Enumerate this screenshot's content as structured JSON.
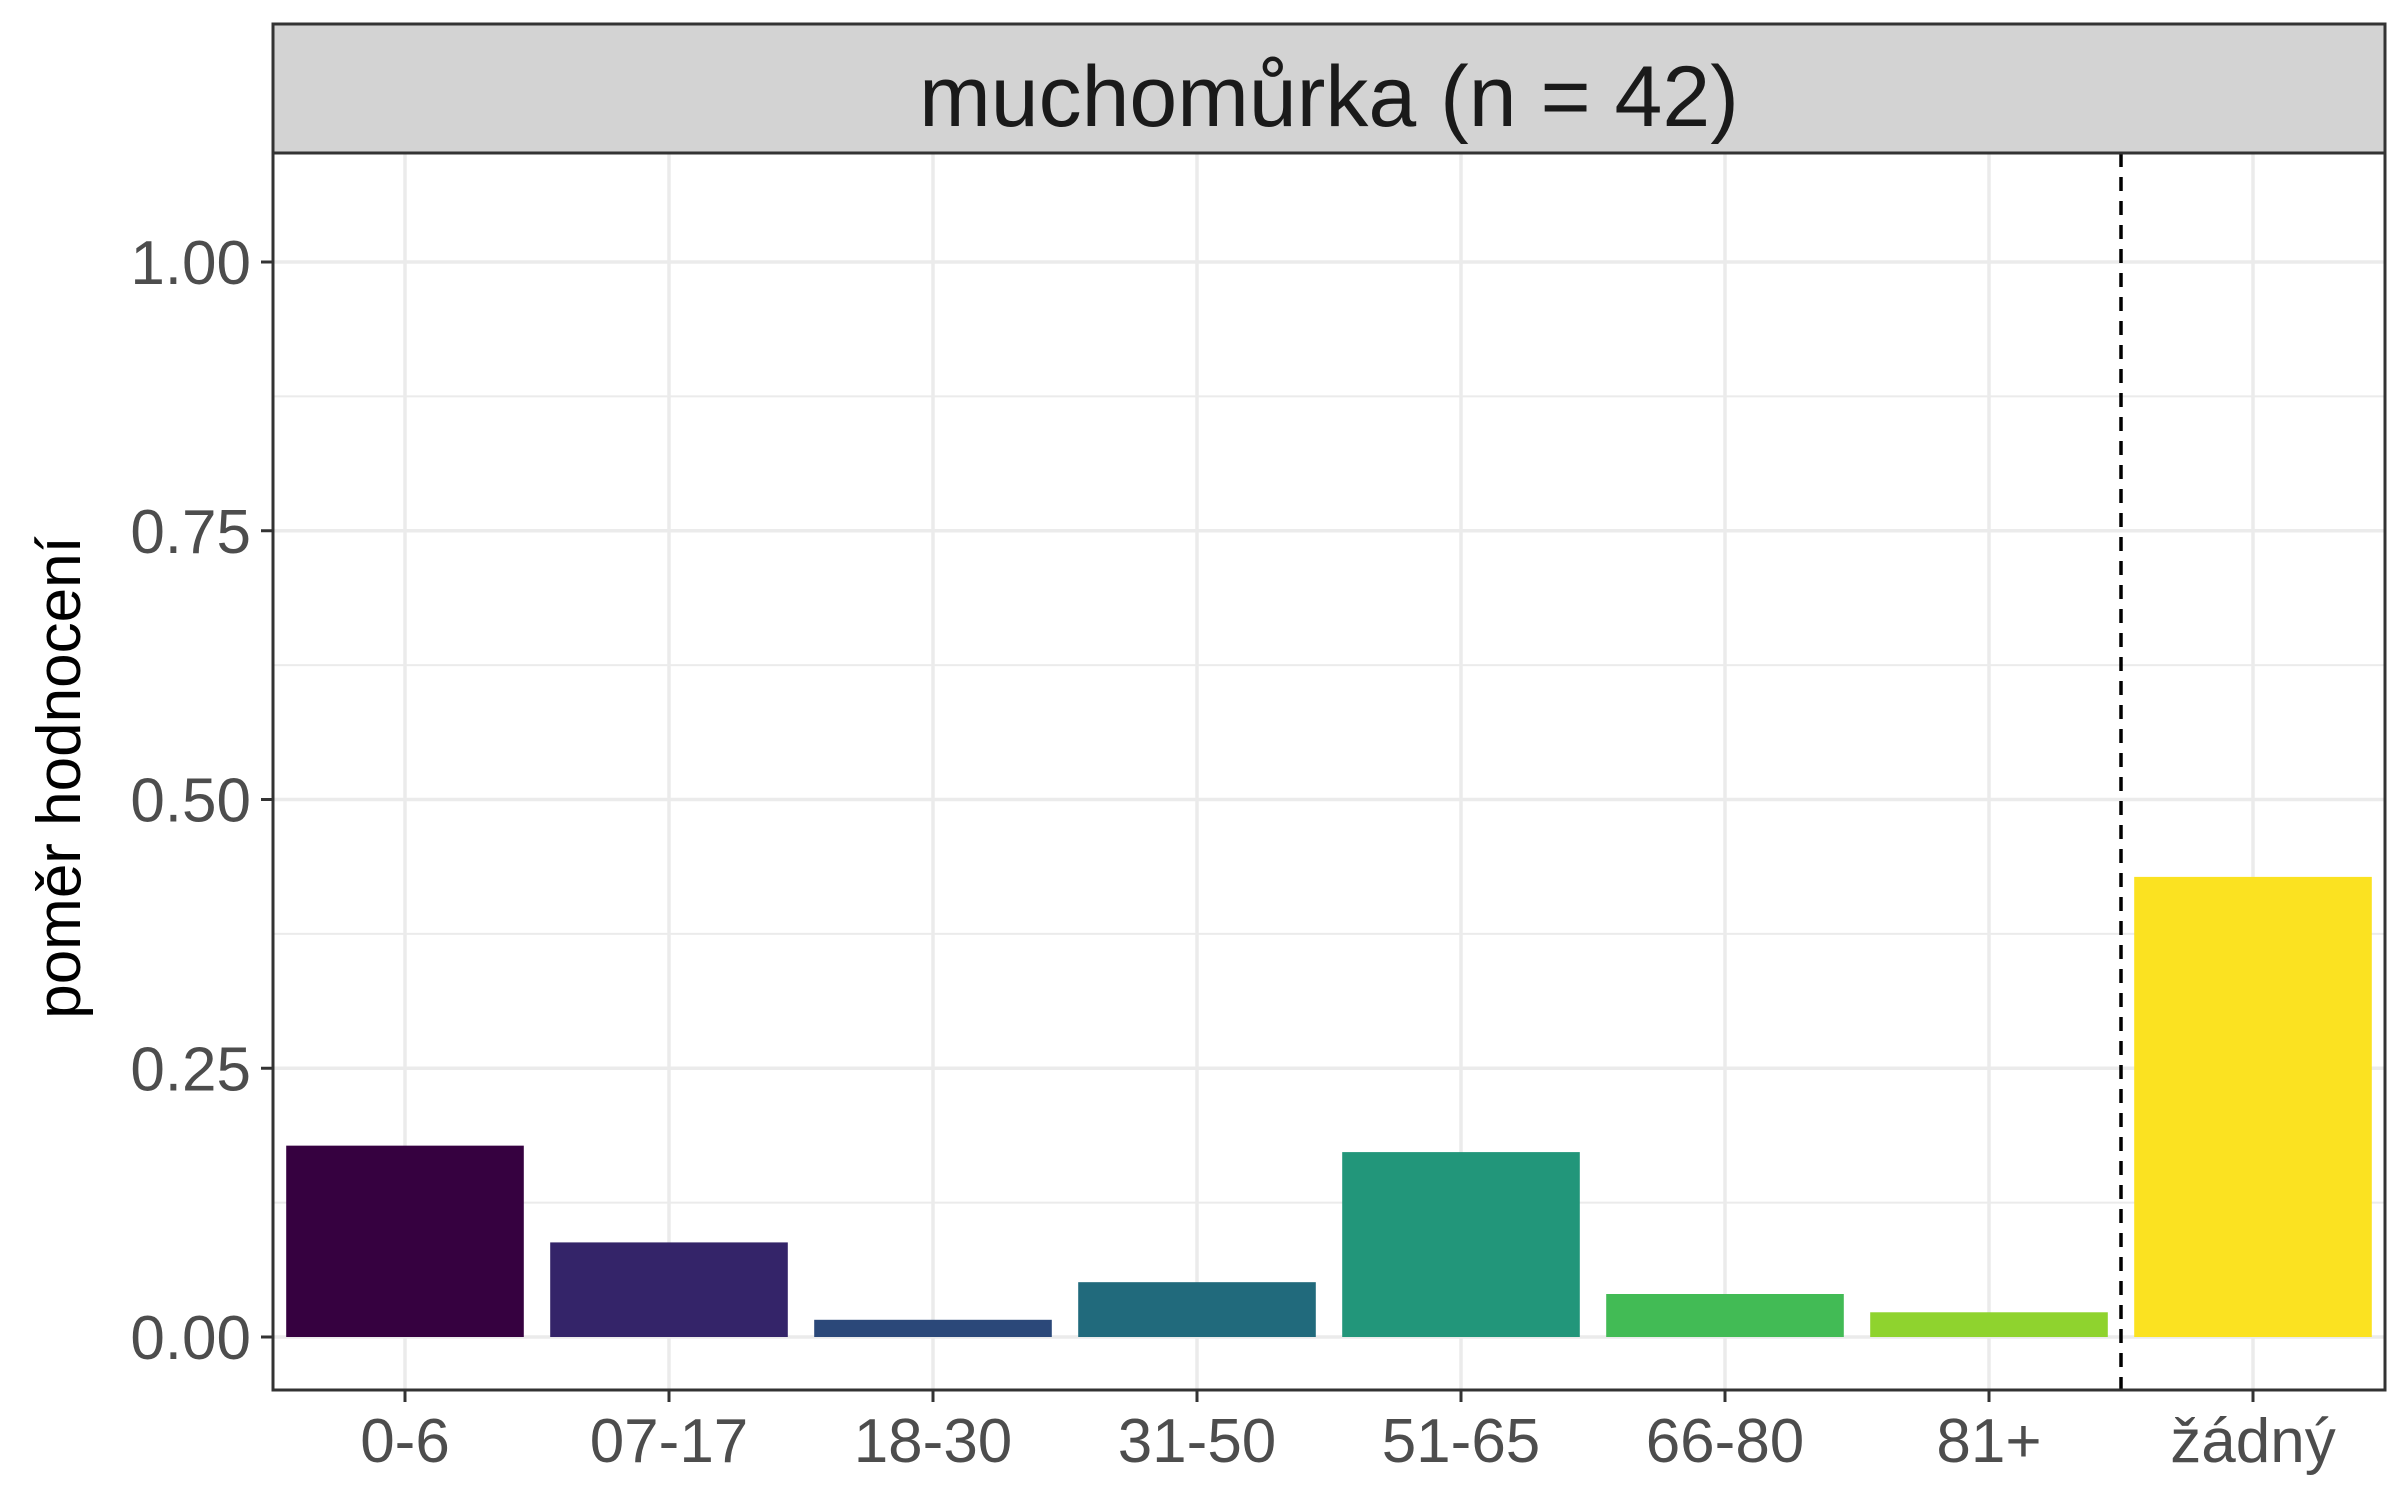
{
  "chart_data": {
    "type": "bar",
    "title": "muchomůrka (n = 42)",
    "xlabel": "",
    "ylabel": "poměr hodnocení",
    "categories": [
      "0-6",
      "07-17",
      "18-30",
      "31-50",
      "51-65",
      "66-80",
      "81+",
      "žádný"
    ],
    "values": [
      0.178,
      0.088,
      0.016,
      0.051,
      0.172,
      0.04,
      0.023,
      0.428
    ],
    "colors": [
      "#360140",
      "#342469",
      "#2b4879",
      "#216a7c",
      "#22967a",
      "#42bb55",
      "#8fd32e",
      "#fbe221"
    ],
    "ylim": [
      0,
      1.1
    ],
    "yticks": [
      0,
      0.25,
      0.5,
      0.75,
      1.0
    ],
    "ytick_labels": [
      "0.00",
      "0.25",
      "0.50",
      "0.75",
      "1.00"
    ],
    "grid": true,
    "reference_line": {
      "style": "dashed",
      "between": [
        "81+",
        "žádný"
      ]
    },
    "colors_ui": {
      "strip_bg": "#d3d3d3",
      "grid": "#ebebeb",
      "border": "#333333"
    }
  }
}
